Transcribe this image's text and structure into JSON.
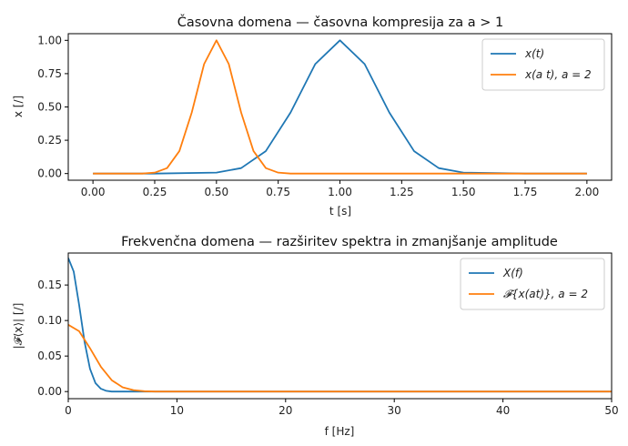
{
  "colors": {
    "blue": "#1f77b4",
    "orange": "#ff7f0e",
    "axis": "#000000"
  },
  "chart_data": [
    {
      "type": "line",
      "title": "Časovna domena — časovna kompresija za a > 1",
      "xlabel": "t [s]",
      "ylabel": "x [/]",
      "xlim": [
        -0.1,
        2.1
      ],
      "ylim": [
        -0.05,
        1.05
      ],
      "xticks": [
        "0.00",
        "0.25",
        "0.50",
        "0.75",
        "1.00",
        "1.25",
        "1.50",
        "1.75",
        "2.00"
      ],
      "yticks": [
        "0.00",
        "0.25",
        "0.50",
        "0.75",
        "1.00"
      ],
      "grid": false,
      "legend": "top-right",
      "series": [
        {
          "name": "x(t)",
          "color": "#1f77b4",
          "x": [
            0,
            0.25,
            0.5,
            0.6,
            0.7,
            0.8,
            0.9,
            1.0,
            1.1,
            1.2,
            1.3,
            1.4,
            1.5,
            1.75,
            2.0
          ],
          "y": [
            0.0,
            0.0,
            0.007,
            0.041,
            0.169,
            0.458,
            0.822,
            1.0,
            0.822,
            0.458,
            0.169,
            0.041,
            0.007,
            0.0,
            0.0
          ]
        },
        {
          "name": "x(a t),  a = 2",
          "color": "#ff7f0e",
          "x": [
            0,
            0.2,
            0.25,
            0.3,
            0.35,
            0.4,
            0.45,
            0.5,
            0.55,
            0.6,
            0.65,
            0.7,
            0.75,
            0.8,
            1.0,
            2.0
          ],
          "y": [
            0.0,
            0.0,
            0.007,
            0.041,
            0.169,
            0.458,
            0.822,
            1.0,
            0.822,
            0.458,
            0.169,
            0.041,
            0.007,
            0.0,
            0.0,
            0.0
          ]
        }
      ]
    },
    {
      "type": "line",
      "title": "Frekvenčna domena — razširitev spektra in zmanjšanje amplitude",
      "xlabel": "f [Hz]",
      "ylabel": "|𝓕⟨x⟩| [/]",
      "xlim": [
        0,
        50
      ],
      "ylim": [
        -0.01,
        0.195
      ],
      "xticks": [
        "0",
        "10",
        "20",
        "30",
        "40",
        "50"
      ],
      "yticks": [
        "0.00",
        "0.05",
        "0.10",
        "0.15"
      ],
      "grid": false,
      "legend": "top-right",
      "series": [
        {
          "name": "X(f)",
          "color": "#1f77b4",
          "x": [
            0,
            0.5,
            1.0,
            1.5,
            2.0,
            2.5,
            3.0,
            3.5,
            4.0,
            5.0,
            50
          ],
          "y": [
            0.188,
            0.169,
            0.122,
            0.07,
            0.032,
            0.012,
            0.004,
            0.001,
            0.0,
            0.0,
            0.0
          ]
        },
        {
          "name": "𝓕{x(at)},  a = 2",
          "color": "#ff7f0e",
          "x": [
            0,
            1,
            2,
            3,
            4,
            5,
            6,
            7,
            8,
            50
          ],
          "y": [
            0.094,
            0.085,
            0.061,
            0.035,
            0.016,
            0.006,
            0.002,
            0.0005,
            0.0,
            0.0
          ]
        }
      ]
    }
  ]
}
